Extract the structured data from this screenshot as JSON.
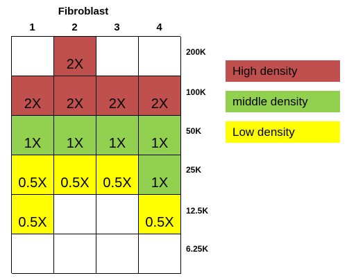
{
  "header": {
    "title": "Fibroblast",
    "columns": [
      "1",
      "2",
      "3",
      "4"
    ]
  },
  "colors": {
    "high": "#c0504d",
    "middle": "#92d050",
    "low": "#ffff00",
    "empty": "#ffffff"
  },
  "grid": {
    "rows": [
      {
        "label": "200K",
        "cells": [
          {
            "text": "",
            "level": "empty"
          },
          {
            "text": "2X",
            "level": "high"
          },
          {
            "text": "",
            "level": "empty"
          },
          {
            "text": "",
            "level": "empty"
          }
        ]
      },
      {
        "label": "100K",
        "cells": [
          {
            "text": "2X",
            "level": "high"
          },
          {
            "text": "2X",
            "level": "high"
          },
          {
            "text": "2X",
            "level": "high"
          },
          {
            "text": "2X",
            "level": "high"
          }
        ]
      },
      {
        "label": "50K",
        "cells": [
          {
            "text": "1X",
            "level": "middle"
          },
          {
            "text": "1X",
            "level": "middle"
          },
          {
            "text": "1X",
            "level": "middle"
          },
          {
            "text": "1X",
            "level": "middle"
          }
        ]
      },
      {
        "label": "25K",
        "cells": [
          {
            "text": "0.5X",
            "level": "low"
          },
          {
            "text": "0.5X",
            "level": "low"
          },
          {
            "text": "0.5X",
            "level": "low"
          },
          {
            "text": "1X",
            "level": "middle"
          }
        ]
      },
      {
        "label": "12.5K",
        "cells": [
          {
            "text": "0.5X",
            "level": "low"
          },
          {
            "text": "",
            "level": "empty"
          },
          {
            "text": "",
            "level": "empty"
          },
          {
            "text": "0.5X",
            "level": "low"
          }
        ]
      },
      {
        "label": "6.25K",
        "cells": [
          {
            "text": "",
            "level": "empty"
          },
          {
            "text": "",
            "level": "empty"
          },
          {
            "text": "",
            "level": "empty"
          },
          {
            "text": "",
            "level": "empty"
          }
        ]
      }
    ]
  },
  "legend": [
    {
      "label": "High density",
      "level": "high"
    },
    {
      "label": "middle density",
      "level": "middle"
    },
    {
      "label": "Low density",
      "level": "low"
    }
  ]
}
